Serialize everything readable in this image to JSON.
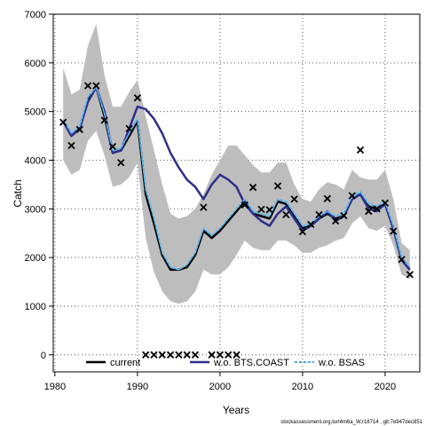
{
  "chart_data": {
    "type": "line",
    "title": "",
    "xlabel": "Years",
    "ylabel": "Catch",
    "xlim": [
      1979.8,
      2024.2
    ],
    "ylim": [
      -350,
      7000
    ],
    "xticks": [
      1980,
      1990,
      2000,
      2010,
      2020
    ],
    "yticks": [
      0,
      1000,
      2000,
      3000,
      4000,
      5000,
      6000,
      7000
    ],
    "grid": true,
    "legend_position": "bottom",
    "band": {
      "x": [
        1981,
        1982,
        1983,
        1984,
        1985,
        1986,
        1987,
        1988,
        1989,
        1990,
        1991,
        1992,
        1993,
        1994,
        1995,
        1996,
        1997,
        1998,
        1999,
        2000,
        2001,
        2002,
        2003,
        2004,
        2005,
        2006,
        2007,
        2008,
        2009,
        2010,
        2011,
        2012,
        2013,
        2014,
        2015,
        2016,
        2017,
        2018,
        2019,
        2020,
        2021,
        2022,
        2023
      ],
      "lower": [
        4000,
        3700,
        3800,
        4400,
        4600,
        4100,
        3450,
        3500,
        3650,
        3950,
        2400,
        1700,
        1300,
        1100,
        1050,
        1100,
        1300,
        1750,
        1650,
        1650,
        1800,
        2050,
        2350,
        2200,
        2150,
        2150,
        2350,
        2350,
        2250,
        2100,
        2100,
        2200,
        2250,
        2350,
        2400,
        2700,
        2850,
        2600,
        2550,
        2650,
        2250,
        1650,
        1550
      ],
      "upper": [
        5900,
        5350,
        5450,
        6350,
        6800,
        5750,
        5100,
        5100,
        5400,
        5650,
        4900,
        4200,
        3500,
        2900,
        2800,
        2850,
        3000,
        3300,
        3700,
        4000,
        4300,
        4300,
        4100,
        3900,
        3750,
        3750,
        3950,
        3950,
        3500,
        3200,
        3150,
        3400,
        3550,
        3500,
        3400,
        3800,
        3650,
        3600,
        3600,
        3800,
        3200,
        2300,
        2150
      ]
    },
    "series": [
      {
        "name": "current",
        "color": "#000000",
        "x": [
          1981,
          1982,
          1983,
          1984,
          1985,
          1986,
          1987,
          1988,
          1989,
          1990,
          1991,
          1992,
          1993,
          1994,
          1995,
          1996,
          1997,
          1998,
          1999,
          2000,
          2001,
          2002,
          2003,
          2004,
          2005,
          2006,
          2007,
          2008,
          2009,
          2010,
          2011,
          2012,
          2013,
          2014,
          2015,
          2016,
          2017,
          2018,
          2019,
          2020,
          2021,
          2022,
          2023
        ],
        "y": [
          4800,
          4500,
          4650,
          5250,
          5500,
          4900,
          4150,
          4200,
          4500,
          4800,
          3300,
          2700,
          2050,
          1750,
          1750,
          1800,
          2050,
          2550,
          2400,
          2550,
          2750,
          2950,
          3150,
          2900,
          2850,
          2800,
          3150,
          3100,
          2850,
          2600,
          2650,
          2800,
          2900,
          2800,
          2850,
          3200,
          3300,
          3050,
          3000,
          3100,
          2600,
          1950,
          1750
        ]
      },
      {
        "name": "w.o. BTS.COAST",
        "color": "#2e2e8a",
        "x": [
          1981,
          1982,
          1983,
          1984,
          1985,
          1986,
          1987,
          1988,
          1989,
          1990,
          1991,
          1992,
          1993,
          1994,
          1995,
          1996,
          1997,
          1998,
          1999,
          2000,
          2001,
          2002,
          2003,
          2004,
          2005,
          2006,
          2007,
          2008,
          2009,
          2010,
          2011,
          2012,
          2013,
          2014,
          2015,
          2016,
          2017,
          2018,
          2019,
          2020,
          2021,
          2022,
          2023
        ],
        "y": [
          4800,
          4500,
          4650,
          5200,
          5500,
          5000,
          4150,
          4200,
          4650,
          5100,
          5050,
          4850,
          4550,
          4150,
          3850,
          3600,
          3450,
          3200,
          3500,
          3700,
          3600,
          3450,
          3100,
          2900,
          2750,
          2650,
          2900,
          3050,
          2800,
          2550,
          2650,
          2800,
          2950,
          2750,
          2850,
          3200,
          3300,
          3000,
          2950,
          3100,
          2600,
          1950,
          1750
        ]
      },
      {
        "name": "w.o. BSAS",
        "color": "#3fa8e8",
        "x": [
          1981,
          1982,
          1983,
          1984,
          1985,
          1986,
          1987,
          1988,
          1989,
          1990,
          1991,
          1992,
          1993,
          1994,
          1995,
          1996,
          1997,
          1998,
          1999,
          2000,
          2001,
          2002,
          2003,
          2004,
          2005,
          2006,
          2007,
          2008,
          2009,
          2010,
          2011,
          2012,
          2013,
          2014,
          2015,
          2016,
          2017,
          2018,
          2019,
          2020,
          2021,
          2022,
          2023
        ],
        "y": [
          4850,
          4550,
          4700,
          5300,
          5500,
          4950,
          4200,
          4250,
          4550,
          4850,
          3400,
          2800,
          2100,
          1800,
          1750,
          1850,
          2100,
          2600,
          2450,
          2600,
          2800,
          3000,
          3200,
          2950,
          2900,
          2850,
          3200,
          3150,
          2900,
          2650,
          2700,
          2850,
          2950,
          2850,
          2900,
          3250,
          3350,
          3100,
          3050,
          3150,
          2650,
          2000,
          1800
        ]
      }
    ],
    "observed": {
      "marker": "×",
      "x": [
        1981,
        1982,
        1983,
        1984,
        1985,
        1986,
        1987,
        1988,
        1989,
        1990,
        1991,
        1992,
        1993,
        1994,
        1995,
        1996,
        1997,
        1998,
        1999,
        2000,
        2001,
        2002,
        2003,
        2004,
        2005,
        2006,
        2007,
        2008,
        2009,
        2010,
        2011,
        2012,
        2013,
        2014,
        2015,
        2016,
        2017,
        2018,
        2019,
        2020,
        2021,
        2022,
        2023
      ],
      "y": [
        4780,
        4300,
        4630,
        5530,
        5530,
        4820,
        4280,
        3950,
        4650,
        5280,
        0,
        0,
        0,
        0,
        0,
        0,
        0,
        3030,
        0,
        0,
        0,
        0,
        3080,
        3440,
        2990,
        2980,
        3470,
        2880,
        3200,
        2530,
        2680,
        2880,
        3210,
        2750,
        2860,
        3270,
        4210,
        2950,
        3000,
        3120,
        2540,
        1960,
        1650
      ]
    },
    "footer": "stockassessment.org,turl4m6a_W,r18714 , git:7e947dec851"
  }
}
